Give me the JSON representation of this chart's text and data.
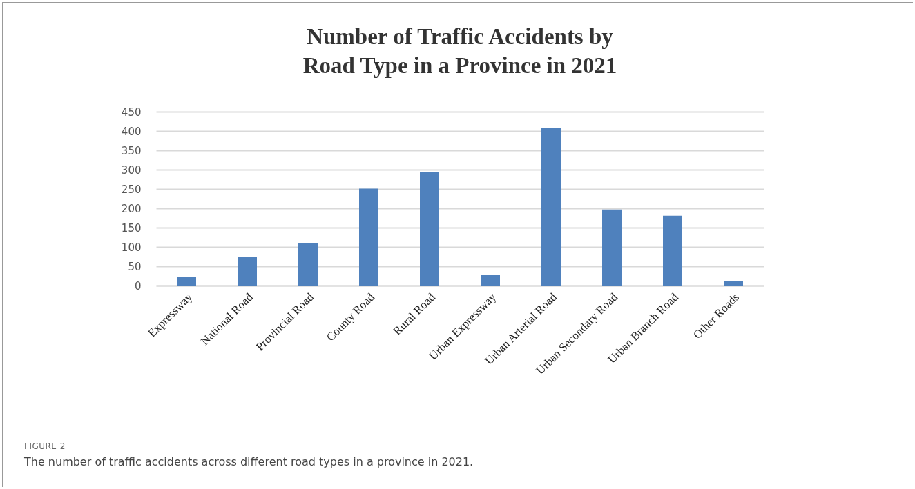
{
  "chart_data": {
    "type": "bar",
    "title": "Number of Traffic Accidents by Road Type in a Province in 2021",
    "categories": [
      "Expressway",
      "National Road",
      "Provincial Road",
      "County Road",
      "Rural Road",
      "Urban Expressway",
      "Urban Arterial Road",
      "Urban Secondary Road",
      "Urban Branch Road",
      "Other Roads"
    ],
    "values": [
      22,
      75,
      109,
      251,
      294,
      28,
      409,
      197,
      181,
      12
    ],
    "color": "#4f81bd",
    "ylim": [
      0,
      450
    ],
    "yticks": [
      0,
      50,
      100,
      150,
      200,
      250,
      300,
      350,
      400,
      450
    ],
    "grid": "y",
    "annotations": [
      "FIGURE 2",
      "The number of traffic accidents across different road types in a province in 2021."
    ]
  }
}
